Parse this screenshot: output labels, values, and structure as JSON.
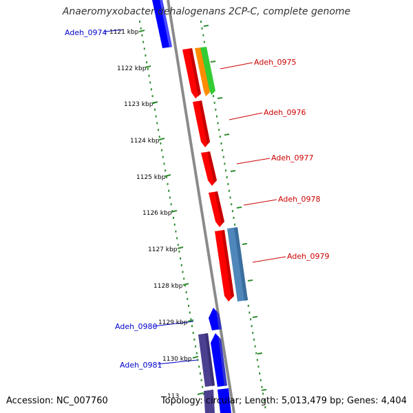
{
  "title": "Anaeromyxobacter dehalogenans 2CP-C, complete genome",
  "footer": {
    "accession": "Accession: NC_007760",
    "summary": "Topology: circular; Length: 5,013,479 bp; Genes: 4,404"
  },
  "colors": {
    "backbone": "#8a8a8a",
    "ticks": "#2e8b2e",
    "minus_strand": "#0000ff",
    "plus_strand": "#ff0000",
    "gene_label_plus": "#cc0000",
    "gene_label_minus": "#0000cc"
  },
  "scale_ticks": [
    {
      "label": "1121 kbp"
    },
    {
      "label": "1122 kbp"
    },
    {
      "label": "1123 kbp"
    },
    {
      "label": "1124 kbp"
    },
    {
      "label": "1125 kbp"
    },
    {
      "label": "1126 kbp"
    },
    {
      "label": "1127 kbp"
    },
    {
      "label": "1128 kbp"
    },
    {
      "label": "1129 kbp"
    },
    {
      "label": "1130 kbp"
    },
    {
      "label": "113"
    }
  ],
  "gene_labels": [
    {
      "name": "Adeh_0974",
      "strand": "minus"
    },
    {
      "name": "Adeh_0975",
      "strand": "plus"
    },
    {
      "name": "Adeh_0976",
      "strand": "plus"
    },
    {
      "name": "Adeh_0977",
      "strand": "plus"
    },
    {
      "name": "Adeh_0978",
      "strand": "plus"
    },
    {
      "name": "Adeh_0979",
      "strand": "plus"
    },
    {
      "name": "Adeh_0980",
      "strand": "minus"
    },
    {
      "name": "Adeh_0981",
      "strand": "minus"
    }
  ]
}
